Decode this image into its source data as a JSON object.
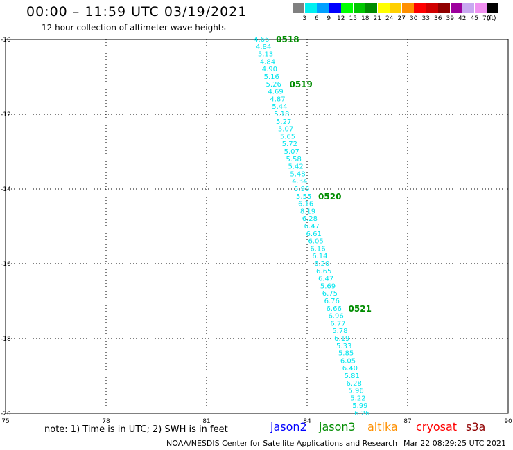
{
  "header": {
    "title": "00:00 – 11:59 UTC 03/19/2021",
    "subtitle": "12 hour collection of altimeter wave heights"
  },
  "legend": {
    "unit": "(ft)",
    "items": [
      {
        "label": "3",
        "color": "#808080"
      },
      {
        "label": "6",
        "color": "#00f0f0"
      },
      {
        "label": "9",
        "color": "#00a0ff"
      },
      {
        "label": "12",
        "color": "#0000ff"
      },
      {
        "label": "15",
        "color": "#00ff00"
      },
      {
        "label": "18",
        "color": "#00c800"
      },
      {
        "label": "21",
        "color": "#008c00"
      },
      {
        "label": "24",
        "color": "#ffff00"
      },
      {
        "label": "27",
        "color": "#ffd000"
      },
      {
        "label": "30",
        "color": "#ff9000"
      },
      {
        "label": "33",
        "color": "#ff0000"
      },
      {
        "label": "36",
        "color": "#d00000"
      },
      {
        "label": "39",
        "color": "#900000"
      },
      {
        "label": "42",
        "color": "#9c009c"
      },
      {
        "label": "45",
        "color": "#c8a8f0"
      },
      {
        "label": "70",
        "color": "#f090f0"
      },
      {
        "label": "",
        "color": "#000000"
      }
    ]
  },
  "chart_data": {
    "type": "scatter",
    "x_range": [
      75,
      90
    ],
    "y_range": [
      -20,
      -10
    ],
    "x_ticks": [
      "75",
      "78",
      "81",
      "84",
      "87",
      "90"
    ],
    "y_ticks": [
      "-10",
      "-12",
      "-14",
      "-16",
      "-18",
      "-20"
    ],
    "grid": true,
    "point_color": "#00e5ee",
    "time_label_color": "#008c00",
    "points": [
      {
        "lon": 82.41,
        "lat": -10.0,
        "label": "4.66"
      },
      {
        "lon": 82.47,
        "lat": -10.2,
        "label": "4.84"
      },
      {
        "lon": 82.53,
        "lat": -10.4,
        "label": "5.13"
      },
      {
        "lon": 82.59,
        "lat": -10.6,
        "label": "4.84"
      },
      {
        "lon": 82.65,
        "lat": -10.8,
        "label": "4.90"
      },
      {
        "lon": 82.71,
        "lat": -11.0,
        "label": "5.16"
      },
      {
        "lon": 82.77,
        "lat": -11.2,
        "label": "5.26"
      },
      {
        "lon": 82.83,
        "lat": -11.4,
        "label": "4.69"
      },
      {
        "lon": 82.89,
        "lat": -11.6,
        "label": "4.87"
      },
      {
        "lon": 82.95,
        "lat": -11.8,
        "label": "5.44"
      },
      {
        "lon": 83.01,
        "lat": -12.0,
        "label": "5.18"
      },
      {
        "lon": 83.07,
        "lat": -12.2,
        "label": "5.27"
      },
      {
        "lon": 83.13,
        "lat": -12.4,
        "label": "5.07"
      },
      {
        "lon": 83.19,
        "lat": -12.6,
        "label": "5.65"
      },
      {
        "lon": 83.25,
        "lat": -12.8,
        "label": "5.72"
      },
      {
        "lon": 83.31,
        "lat": -13.0,
        "label": "5.07"
      },
      {
        "lon": 83.37,
        "lat": -13.2,
        "label": "5.58"
      },
      {
        "lon": 83.43,
        "lat": -13.4,
        "label": "5.42"
      },
      {
        "lon": 83.49,
        "lat": -13.6,
        "label": "5.48"
      },
      {
        "lon": 83.55,
        "lat": -13.8,
        "label": "4.34"
      },
      {
        "lon": 83.61,
        "lat": -14.0,
        "label": "5.96"
      },
      {
        "lon": 83.67,
        "lat": -14.2,
        "label": "5.55"
      },
      {
        "lon": 83.73,
        "lat": -14.4,
        "label": "6.16"
      },
      {
        "lon": 83.79,
        "lat": -14.6,
        "label": "8.19"
      },
      {
        "lon": 83.85,
        "lat": -14.8,
        "label": "6.28"
      },
      {
        "lon": 83.91,
        "lat": -15.0,
        "label": "6.47"
      },
      {
        "lon": 83.97,
        "lat": -15.2,
        "label": "6.61"
      },
      {
        "lon": 84.03,
        "lat": -15.4,
        "label": "6.05"
      },
      {
        "lon": 84.09,
        "lat": -15.6,
        "label": "6.16"
      },
      {
        "lon": 84.15,
        "lat": -15.8,
        "label": "6.14"
      },
      {
        "lon": 84.21,
        "lat": -16.0,
        "label": "6.20"
      },
      {
        "lon": 84.27,
        "lat": -16.2,
        "label": "6.65"
      },
      {
        "lon": 84.33,
        "lat": -16.4,
        "label": "6.47"
      },
      {
        "lon": 84.39,
        "lat": -16.6,
        "label": "5.69"
      },
      {
        "lon": 84.45,
        "lat": -16.8,
        "label": "6.75"
      },
      {
        "lon": 84.51,
        "lat": -17.0,
        "label": "6.76"
      },
      {
        "lon": 84.57,
        "lat": -17.2,
        "label": "6.66"
      },
      {
        "lon": 84.63,
        "lat": -17.4,
        "label": "6.96"
      },
      {
        "lon": 84.69,
        "lat": -17.6,
        "label": "6.77"
      },
      {
        "lon": 84.75,
        "lat": -17.8,
        "label": "5.78"
      },
      {
        "lon": 84.81,
        "lat": -18.0,
        "label": "6.19"
      },
      {
        "lon": 84.87,
        "lat": -18.2,
        "label": "5.33"
      },
      {
        "lon": 84.93,
        "lat": -18.4,
        "label": "5.85"
      },
      {
        "lon": 84.99,
        "lat": -18.6,
        "label": "6.05"
      },
      {
        "lon": 85.05,
        "lat": -18.8,
        "label": "6.40"
      },
      {
        "lon": 85.11,
        "lat": -19.0,
        "label": "5.81"
      },
      {
        "lon": 85.17,
        "lat": -19.2,
        "label": "6.28"
      },
      {
        "lon": 85.23,
        "lat": -19.4,
        "label": "5.96"
      },
      {
        "lon": 85.29,
        "lat": -19.6,
        "label": "5.22"
      },
      {
        "lon": 85.35,
        "lat": -19.8,
        "label": "5.99"
      },
      {
        "lon": 85.41,
        "lat": -20.0,
        "label": "6.26"
      }
    ],
    "time_labels": [
      {
        "lon": 82.41,
        "lat": -10.0,
        "label": "0518"
      },
      {
        "lon": 82.81,
        "lat": -11.2,
        "label": "0519"
      },
      {
        "lon": 83.67,
        "lat": -14.2,
        "label": "0520"
      },
      {
        "lon": 84.57,
        "lat": -17.2,
        "label": "0521"
      }
    ]
  },
  "footer": {
    "note": "note: 1) Time is in UTC; 2) SWH is in feet",
    "satellites": [
      {
        "name": "jason2",
        "color": "#0000ff"
      },
      {
        "name": "jason3",
        "color": "#008c00"
      },
      {
        "name": "altika",
        "color": "#ff9000"
      },
      {
        "name": "cryosat",
        "color": "#ff0000"
      },
      {
        "name": "s3a",
        "color": "#900000"
      }
    ],
    "credit": "NOAA/NESDIS Center for Satellite Applications and Research",
    "timestamp": "Mar 22 08:29:25 UTC 2021"
  }
}
